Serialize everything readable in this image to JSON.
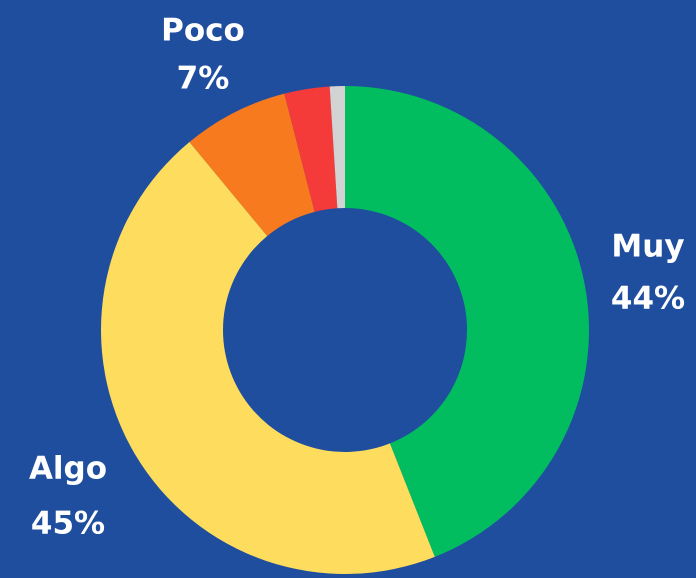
{
  "chart_data": {
    "type": "donut",
    "categories": [
      "Muy",
      "Algo",
      "Poco",
      null,
      null
    ],
    "values": [
      44,
      45,
      7,
      3,
      1
    ],
    "value_labels": [
      "44%",
      "45%",
      "7%",
      null,
      null
    ],
    "colors": [
      "#02bd5f",
      "#fedc5d",
      "#f77a1e",
      "#f43b3a",
      "#d3d3d3"
    ]
  }
}
